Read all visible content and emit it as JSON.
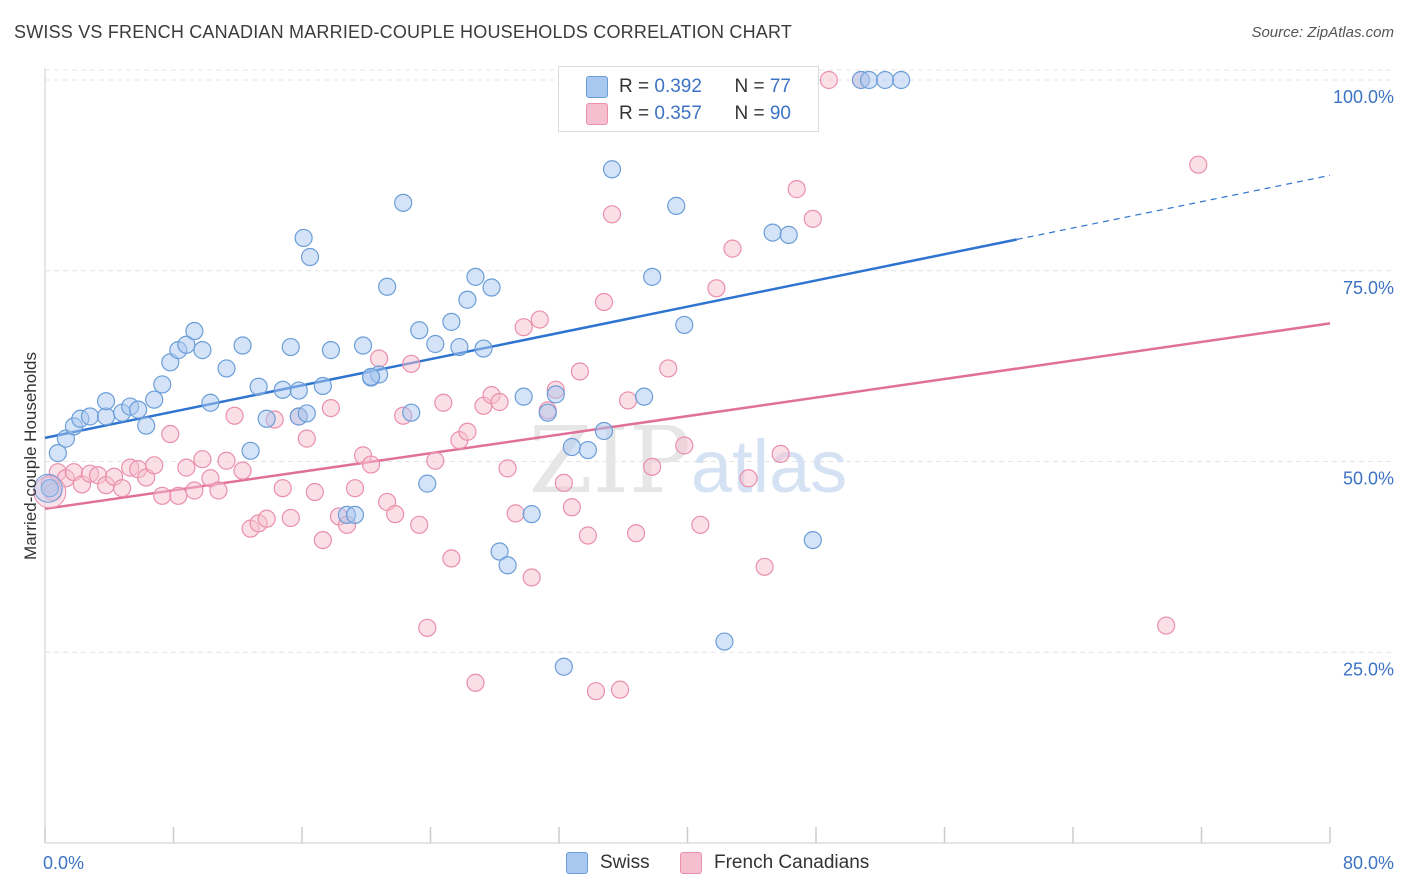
{
  "title": "SWISS VS FRENCH CANADIAN MARRIED-COUPLE HOUSEHOLDS CORRELATION CHART",
  "source": "Source: ZipAtlas.com",
  "legend": {
    "rows": [
      {
        "r_label": "R = ",
        "r_value": "0.392",
        "n_label": "N = ",
        "n_value": "77"
      },
      {
        "r_label": "R = ",
        "r_value": "0.357",
        "n_label": "N = ",
        "n_value": "90"
      }
    ]
  },
  "bottom_legend": [
    "Swiss",
    "French Canadians"
  ],
  "colors": {
    "swiss_fill": "#a9c8f0",
    "swiss_stroke": "#6b9ed8",
    "swiss_line": "#2e74d0",
    "fc_fill": "#f6bfd0",
    "fc_stroke": "#ea8fac",
    "fc_line": "#e0709a",
    "tick_label": "#3d73c4",
    "grid": "#e4e4e4"
  },
  "chart_data": {
    "type": "scatter",
    "xlabel": "",
    "ylabel": "Married-couple Households",
    "xlim": [
      0,
      80
    ],
    "ylim": [
      0,
      105
    ],
    "x_tick_labels": [
      "0.0%",
      "80.0%"
    ],
    "y_ticks": [
      25,
      50,
      75,
      100
    ],
    "y_tick_labels": [
      "25.0%",
      "50.0%",
      "75.0%",
      "100.0%"
    ],
    "grid": true,
    "legend_position": "top-center",
    "watermark": "ZIPatlas",
    "series": [
      {
        "name": "Swiss",
        "r": 0.392,
        "n": 77,
        "trend": {
          "x0": 0,
          "y0": 53.1,
          "x1": 60.5,
          "y1": 79.1,
          "x_dash_end": 80,
          "y_dash_end": 87.5
        },
        "points": [
          [
            0.8,
            51.1
          ],
          [
            1.3,
            53
          ],
          [
            1.8,
            54.6
          ],
          [
            2.2,
            55.6
          ],
          [
            2.8,
            55.9
          ],
          [
            3.8,
            55.9
          ],
          [
            3.8,
            57.9
          ],
          [
            4.8,
            56.4
          ],
          [
            5.3,
            57.2
          ],
          [
            5.8,
            56.8
          ],
          [
            6.3,
            54.7
          ],
          [
            6.8,
            58.1
          ],
          [
            7.3,
            60.1
          ],
          [
            7.8,
            63
          ],
          [
            8.3,
            64.6
          ],
          [
            8.8,
            65.3
          ],
          [
            9.3,
            67.1
          ],
          [
            9.8,
            64.6
          ],
          [
            10.3,
            57.7
          ],
          [
            11.3,
            62.2
          ],
          [
            12.3,
            65.2
          ],
          [
            13.3,
            59.8
          ],
          [
            13.8,
            55.6
          ],
          [
            14.8,
            59.4
          ],
          [
            15.3,
            65
          ],
          [
            15.8,
            55.9
          ],
          [
            16.3,
            56.3
          ],
          [
            16.1,
            79.3
          ],
          [
            16.5,
            76.8
          ],
          [
            17.3,
            59.9
          ],
          [
            17.8,
            64.6
          ],
          [
            18.8,
            43
          ],
          [
            19.3,
            43
          ],
          [
            19.8,
            65.2
          ],
          [
            20.3,
            61
          ],
          [
            20.8,
            61.4
          ],
          [
            21.3,
            72.9
          ],
          [
            22.3,
            83.9
          ],
          [
            22.8,
            56.4
          ],
          [
            23.3,
            67.2
          ],
          [
            23.8,
            47.1
          ],
          [
            24.3,
            65.4
          ],
          [
            25.3,
            68.3
          ],
          [
            25.8,
            65
          ],
          [
            26.3,
            71.2
          ],
          [
            26.8,
            74.2
          ],
          [
            27.3,
            64.8
          ],
          [
            27.8,
            72.8
          ],
          [
            28.3,
            38.2
          ],
          [
            28.8,
            36.4
          ],
          [
            29.8,
            58.5
          ],
          [
            30.3,
            43.1
          ],
          [
            31.3,
            56.4
          ],
          [
            31.8,
            58.8
          ],
          [
            32.3,
            23.1
          ],
          [
            32.8,
            51.9
          ],
          [
            33.8,
            51.5
          ],
          [
            34.8,
            54
          ],
          [
            35.3,
            88.3
          ],
          [
            37.3,
            58.5
          ],
          [
            37.8,
            74.2
          ],
          [
            39.3,
            83.5
          ],
          [
            39.8,
            67.9
          ],
          [
            42.3,
            26.4
          ],
          [
            43.3,
            100
          ],
          [
            44.8,
            100
          ],
          [
            45.3,
            80
          ],
          [
            46.3,
            79.7
          ],
          [
            47.8,
            39.7
          ],
          [
            50.8,
            100
          ],
          [
            51.3,
            100
          ],
          [
            52.3,
            100
          ],
          [
            53.3,
            100
          ],
          [
            0.3,
            46.5
          ],
          [
            12.8,
            51.4
          ],
          [
            15.8,
            59.3
          ],
          [
            20.3,
            61.1
          ]
        ]
      },
      {
        "name": "French Canadians",
        "r": 0.357,
        "n": 90,
        "trend": {
          "x0": 0,
          "y0": 43.8,
          "x1": 80,
          "y1": 68.1
        },
        "points": [
          [
            0.3,
            47.1
          ],
          [
            0.8,
            48.6
          ],
          [
            1.3,
            47.8
          ],
          [
            1.8,
            48.6
          ],
          [
            2.3,
            47
          ],
          [
            2.8,
            48.4
          ],
          [
            3.3,
            48.2
          ],
          [
            3.8,
            46.9
          ],
          [
            4.3,
            48
          ],
          [
            4.8,
            46.5
          ],
          [
            5.3,
            49.2
          ],
          [
            5.8,
            49
          ],
          [
            6.3,
            47.9
          ],
          [
            6.8,
            49.5
          ],
          [
            7.3,
            45.5
          ],
          [
            7.8,
            53.6
          ],
          [
            8.3,
            45.5
          ],
          [
            8.8,
            49.2
          ],
          [
            9.3,
            46.2
          ],
          [
            9.8,
            50.3
          ],
          [
            10.3,
            47.8
          ],
          [
            10.8,
            46.2
          ],
          [
            11.3,
            50.1
          ],
          [
            11.8,
            56
          ],
          [
            12.3,
            48.8
          ],
          [
            12.8,
            41.2
          ],
          [
            13.3,
            41.9
          ],
          [
            13.8,
            42.5
          ],
          [
            14.3,
            55.5
          ],
          [
            14.8,
            46.5
          ],
          [
            15.3,
            42.6
          ],
          [
            15.8,
            55.9
          ],
          [
            16.3,
            53
          ],
          [
            16.8,
            46
          ],
          [
            17.3,
            39.7
          ],
          [
            17.8,
            57
          ],
          [
            18.3,
            42.8
          ],
          [
            18.8,
            41.7
          ],
          [
            19.3,
            46.5
          ],
          [
            19.8,
            50.8
          ],
          [
            20.3,
            49.6
          ],
          [
            20.8,
            63.5
          ],
          [
            21.3,
            44.7
          ],
          [
            21.8,
            43.1
          ],
          [
            22.3,
            56
          ],
          [
            22.8,
            62.8
          ],
          [
            23.3,
            41.7
          ],
          [
            23.8,
            28.2
          ],
          [
            24.3,
            50.1
          ],
          [
            24.8,
            57.7
          ],
          [
            25.3,
            37.3
          ],
          [
            25.8,
            52.8
          ],
          [
            26.3,
            53.9
          ],
          [
            26.8,
            21
          ],
          [
            27.3,
            57.3
          ],
          [
            27.8,
            58.7
          ],
          [
            28.3,
            57.8
          ],
          [
            28.8,
            49.1
          ],
          [
            29.3,
            43.2
          ],
          [
            29.8,
            67.6
          ],
          [
            30.3,
            34.8
          ],
          [
            30.8,
            68.6
          ],
          [
            31.3,
            56.7
          ],
          [
            31.8,
            59.4
          ],
          [
            32.3,
            47.2
          ],
          [
            32.8,
            44
          ],
          [
            33.3,
            61.8
          ],
          [
            33.8,
            40.3
          ],
          [
            34.3,
            19.9
          ],
          [
            34.8,
            70.9
          ],
          [
            35.3,
            82.4
          ],
          [
            35.8,
            20.1
          ],
          [
            36.3,
            58
          ],
          [
            36.8,
            40.6
          ],
          [
            37.8,
            49.3
          ],
          [
            38.8,
            62.2
          ],
          [
            39.8,
            52.1
          ],
          [
            40.8,
            41.7
          ],
          [
            41.8,
            72.7
          ],
          [
            42.8,
            77.9
          ],
          [
            43.8,
            47.8
          ],
          [
            44.8,
            36.2
          ],
          [
            45.8,
            51
          ],
          [
            46.8,
            85.7
          ],
          [
            47.8,
            81.8
          ],
          [
            48.8,
            100
          ],
          [
            50.8,
            100
          ],
          [
            69.8,
            28.5
          ],
          [
            71.8,
            88.9
          ],
          [
            0.5,
            46
          ]
        ]
      }
    ]
  }
}
